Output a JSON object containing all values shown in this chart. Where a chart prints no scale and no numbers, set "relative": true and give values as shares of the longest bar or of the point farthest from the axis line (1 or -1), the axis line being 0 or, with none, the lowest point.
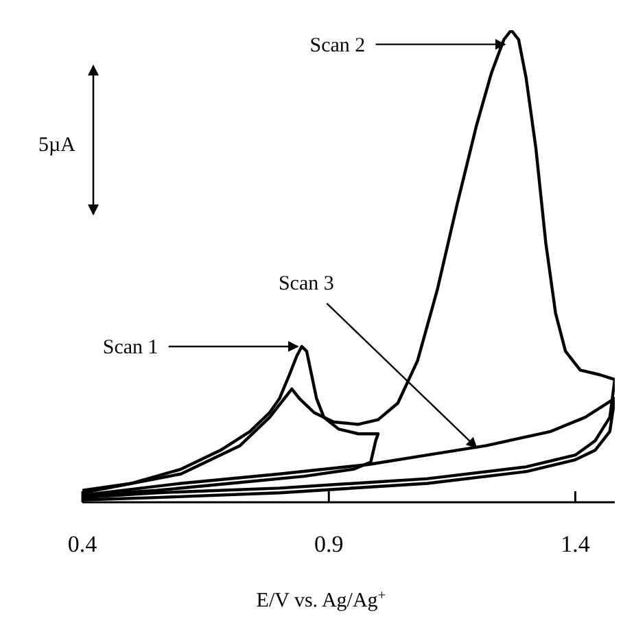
{
  "chart_data": {
    "type": "line",
    "relative": true,
    "xlabel": "E/V vs. Ag/Ag$^{+}$",
    "xlim": [
      0.4,
      1.48
    ],
    "xticks": [
      0.4,
      0.9,
      1.4
    ],
    "grid": false,
    "legend": false,
    "marker": "none",
    "line_style": "solid",
    "annotations": [
      "5µA",
      {
        "text": "Scan 1",
        "x": 0.845,
        "y": 0.33
      },
      {
        "text": "Scan 2",
        "x": 1.265,
        "y": 0.97
      },
      {
        "text": "Scan 3",
        "x": 1.216,
        "y": 0.116
      }
    ],
    "series": [
      {
        "color": "#000000",
        "x": [
          0.4,
          0.5,
          0.6,
          0.68,
          0.74,
          0.78,
          0.8,
          0.82,
          0.835,
          0.845,
          0.855,
          0.865,
          0.875,
          0.89,
          0.92,
          0.96,
          1.0,
          0.995,
          0.985,
          0.95,
          0.85,
          0.7,
          0.55,
          0.4
        ],
        "values": [
          0.025,
          0.04,
          0.07,
          0.11,
          0.15,
          0.19,
          0.22,
          0.27,
          0.31,
          0.33,
          0.32,
          0.27,
          0.22,
          0.18,
          0.155,
          0.145,
          0.145,
          0.13,
          0.085,
          0.07,
          0.055,
          0.04,
          0.025,
          0.015
        ]
      },
      {
        "color": "#000000",
        "x": [
          0.4,
          0.6,
          0.72,
          0.78,
          0.81,
          0.825,
          0.84,
          0.87,
          0.91,
          0.96,
          1.0,
          1.04,
          1.08,
          1.12,
          1.16,
          1.2,
          1.23,
          1.255,
          1.27,
          1.285,
          1.3,
          1.32,
          1.34,
          1.36,
          1.38,
          1.41,
          1.45,
          1.48,
          1.47,
          1.44,
          1.4,
          1.3,
          1.1,
          0.8,
          0.55,
          0.4
        ],
        "values": [
          0.02,
          0.06,
          0.12,
          0.18,
          0.22,
          0.24,
          0.22,
          0.19,
          0.17,
          0.165,
          0.175,
          0.21,
          0.3,
          0.45,
          0.63,
          0.8,
          0.91,
          0.98,
          1.0,
          0.98,
          0.9,
          0.75,
          0.55,
          0.4,
          0.32,
          0.28,
          0.27,
          0.26,
          0.18,
          0.13,
          0.1,
          0.075,
          0.05,
          0.03,
          0.02,
          0.01
        ]
      },
      {
        "color": "#000000",
        "x": [
          0.4,
          0.6,
          0.8,
          0.98,
          1.1,
          1.22,
          1.35,
          1.42,
          1.48,
          1.47,
          1.44,
          1.4,
          1.3,
          1.1,
          0.8,
          0.55,
          0.4
        ],
        "values": [
          0.015,
          0.04,
          0.06,
          0.08,
          0.1,
          0.12,
          0.15,
          0.18,
          0.22,
          0.15,
          0.11,
          0.09,
          0.065,
          0.04,
          0.02,
          0.01,
          0.005
        ]
      }
    ]
  }
}
